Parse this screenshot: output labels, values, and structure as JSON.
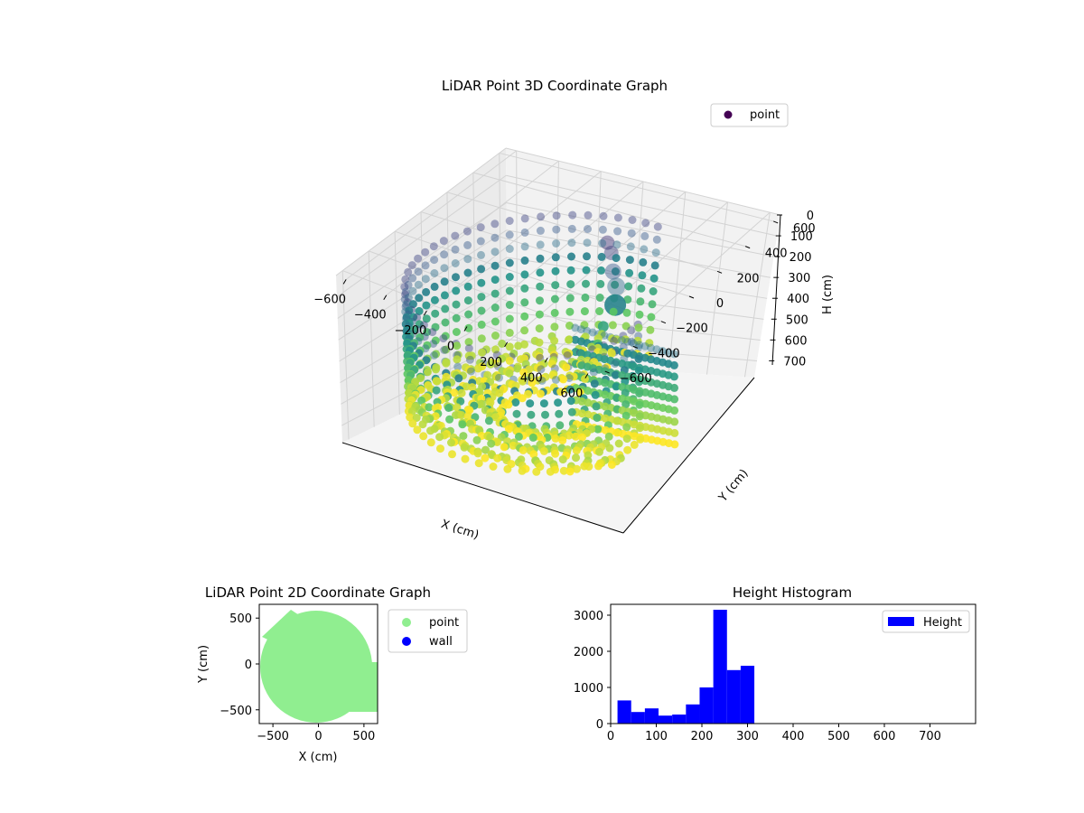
{
  "chart_data": [
    {
      "type": "scatter3d",
      "title": "LiDAR Point 3D Coordinate Graph",
      "xlabel": "X (cm)",
      "ylabel": "Y (cm)",
      "zlabel": "H (cm)",
      "xticks": [
        "−600",
        "−400",
        "−200",
        "0",
        "200",
        "400",
        "600"
      ],
      "yticks": [
        "−600",
        "−400",
        "−200",
        "0",
        "200",
        "400",
        "600"
      ],
      "zticks": [
        "0",
        "100",
        "200",
        "300",
        "400",
        "500",
        "600",
        "700"
      ],
      "xlim": [
        -650,
        650
      ],
      "ylim": [
        -650,
        650
      ],
      "zlim": [
        0,
        780
      ],
      "z_inverted": true,
      "legend": [
        {
          "label": "point",
          "color": "#440154"
        }
      ],
      "legend_position": "top-right",
      "colormap": "viridis",
      "grid": true
    },
    {
      "type": "scatter",
      "title": "LiDAR Point 2D Coordinate Graph",
      "xlabel": "X (cm)",
      "ylabel": "Y (cm)",
      "xticks": [
        "−500",
        "0",
        "500"
      ],
      "yticks": [
        "500",
        "0",
        "−500"
      ],
      "xlim": [
        -650,
        650
      ],
      "ylim": [
        -650,
        650
      ],
      "series": [
        {
          "name": "point",
          "color": "#90ee90"
        },
        {
          "name": "wall",
          "color": "#0000ff"
        }
      ],
      "legend_position": "outside-right"
    },
    {
      "type": "bar",
      "title": "Height Histogram",
      "xlabel": "",
      "ylabel": "",
      "xticks": [
        "0",
        "100",
        "200",
        "300",
        "400",
        "500",
        "600",
        "700"
      ],
      "yticks": [
        "0",
        "1000",
        "2000",
        "3000"
      ],
      "xlim": [
        0,
        800
      ],
      "ylim": [
        0,
        3300
      ],
      "bin_width": 30,
      "bins": [
        {
          "start": 15,
          "count": 640
        },
        {
          "start": 45,
          "count": 320
        },
        {
          "start": 75,
          "count": 420
        },
        {
          "start": 105,
          "count": 220
        },
        {
          "start": 135,
          "count": 250
        },
        {
          "start": 165,
          "count": 530
        },
        {
          "start": 195,
          "count": 1000
        },
        {
          "start": 225,
          "count": 3150
        },
        {
          "start": 255,
          "count": 1480
        },
        {
          "start": 285,
          "count": 1600
        }
      ],
      "color": "#0000ff",
      "legend": [
        {
          "label": "Height",
          "color": "#0000ff"
        }
      ],
      "legend_position": "top-right"
    }
  ]
}
